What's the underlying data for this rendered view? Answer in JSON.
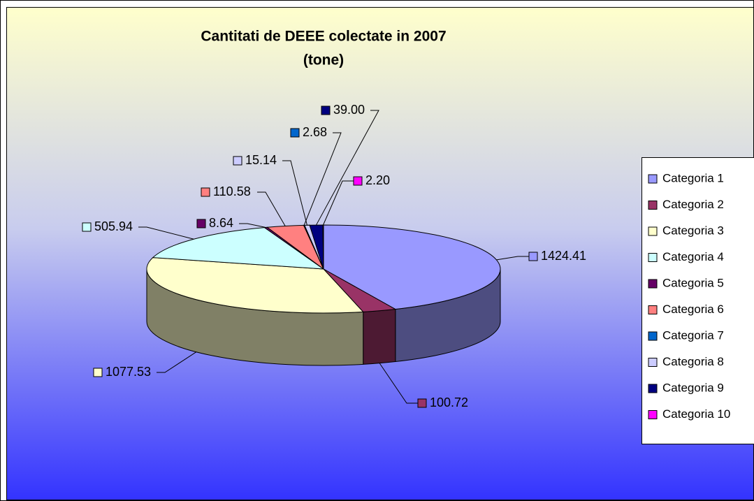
{
  "chart_data": {
    "type": "pie",
    "title": "Cantitati de DEEE colectate in 2007",
    "subtitle": "(tone)",
    "categories": [
      "Categoria 1",
      "Categoria 2",
      "Categoria 3",
      "Categoria 4",
      "Categoria 5",
      "Categoria 6",
      "Categoria 7",
      "Categoria 8",
      "Categoria 9",
      "Categoria 10"
    ],
    "values": [
      1424.41,
      100.72,
      1077.53,
      505.94,
      8.64,
      110.58,
      2.68,
      15.14,
      39.0,
      2.2
    ],
    "value_labels": [
      "1424.41",
      "100.72",
      "1077.53",
      "505.94",
      "8.64",
      "110.58",
      "2.68",
      "15.14",
      "39.00",
      "2.20"
    ],
    "colors": [
      "#9999ff",
      "#993366",
      "#ffffcc",
      "#ccffff",
      "#660066",
      "#ff8080",
      "#0066cc",
      "#ccccff",
      "#000080",
      "#ff00ff"
    ],
    "legend": "right"
  }
}
